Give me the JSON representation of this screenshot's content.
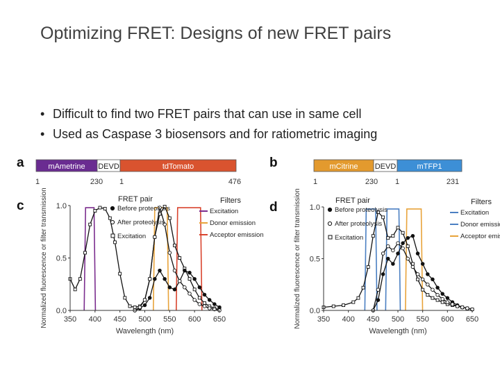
{
  "slide": {
    "title": "Optimizing FRET: Designs of new FRET pairs",
    "bullets": [
      "Difficult to find two FRET pairs that can use in same cell",
      "Used as Caspase 3 biosensors and for ratiometric imaging"
    ]
  },
  "panels": {
    "a": {
      "letter": "a",
      "segments": [
        {
          "label": "mAmetrine",
          "color": "#6a2c91"
        },
        {
          "label": "DEVD",
          "color": "#ffffff"
        },
        {
          "label": "tdTomato",
          "color": "#d9532f"
        }
      ],
      "numbers": [
        "1",
        "230",
        "1",
        "476"
      ]
    },
    "b": {
      "letter": "b",
      "segments": [
        {
          "label": "mCitrine",
          "color": "#e39a2e"
        },
        {
          "label": "DEVD",
          "color": "#ffffff"
        },
        {
          "label": "mTFP1",
          "color": "#3d8fd6"
        }
      ],
      "numbers": [
        "1",
        "230",
        "1",
        "231"
      ]
    }
  },
  "chart_data": [
    {
      "panel": "c",
      "type": "line",
      "xlabel": "Wavelength (nm)",
      "ylabel": "Normalized fluorescence or filter transmission",
      "xlim": [
        350,
        650
      ],
      "ylim": [
        0,
        1
      ],
      "xticks": [
        "350",
        "400",
        "450",
        "500",
        "550",
        "600",
        "650"
      ],
      "yticks": [
        "0.0",
        "0.5",
        "1.0"
      ],
      "legend_fret_title": "FRET pair",
      "legend_fret": [
        {
          "marker": "filled-circle",
          "label": "Before proteolysis"
        },
        {
          "marker": "open-circle",
          "label": "After proteolysis"
        },
        {
          "marker": "square",
          "label": "Excitation"
        }
      ],
      "legend_filters_title": "Filters",
      "legend_filters": [
        {
          "label": "Excitation",
          "color": "#7b2d8e"
        },
        {
          "label": "Donor emission",
          "color": "#e8a33a"
        },
        {
          "label": "Acceptor emission",
          "color": "#d9442e"
        }
      ],
      "series": [
        {
          "name": "Excitation",
          "x": [
            350,
            360,
            370,
            380,
            390,
            400,
            410,
            420,
            430,
            440,
            450,
            460,
            470,
            480,
            490,
            500,
            510,
            520,
            530,
            540,
            550,
            560,
            570,
            580,
            590,
            600,
            610,
            620,
            630,
            640,
            650
          ],
          "y": [
            0.3,
            0.2,
            0.3,
            0.55,
            0.82,
            0.95,
            0.98,
            0.97,
            0.88,
            0.65,
            0.35,
            0.12,
            0.04,
            0.03,
            0.04,
            0.1,
            0.3,
            0.7,
            0.92,
            0.99,
            0.88,
            0.62,
            0.5,
            0.4,
            0.3,
            0.2,
            0.12,
            0.07,
            0.04,
            0.02,
            0.01
          ]
        },
        {
          "name": "Before proteolysis",
          "x": [
            480,
            490,
            500,
            510,
            520,
            530,
            540,
            550,
            560,
            570,
            580,
            590,
            600,
            610,
            620,
            630,
            640,
            650
          ],
          "y": [
            0.0,
            0.02,
            0.05,
            0.12,
            0.3,
            0.38,
            0.3,
            0.22,
            0.2,
            0.28,
            0.38,
            0.36,
            0.3,
            0.22,
            0.15,
            0.1,
            0.06,
            0.03
          ]
        },
        {
          "name": "After proteolysis",
          "x": [
            480,
            490,
            500,
            510,
            520,
            530,
            540,
            550,
            560,
            570,
            580,
            590,
            600,
            610,
            620,
            630,
            640,
            650
          ],
          "y": [
            0.0,
            0.03,
            0.1,
            0.3,
            0.7,
            0.98,
            0.82,
            0.55,
            0.38,
            0.28,
            0.22,
            0.16,
            0.1,
            0.06,
            0.04,
            0.02,
            0.01,
            0.0
          ]
        }
      ],
      "filter_bands": [
        {
          "name": "Excitation",
          "range": [
            381,
            398
          ]
        },
        {
          "name": "Donor emission",
          "range": [
            520,
            545
          ]
        },
        {
          "name": "Acceptor emission",
          "range": [
            566,
            612
          ]
        }
      ]
    },
    {
      "panel": "d",
      "type": "line",
      "xlabel": "Wavelength (nm)",
      "ylabel": "Normalized fluorescence or filter transmission",
      "xlim": [
        350,
        650
      ],
      "ylim": [
        0,
        1
      ],
      "xticks": [
        "350",
        "400",
        "450",
        "500",
        "550",
        "600",
        "650"
      ],
      "yticks": [
        "0.0",
        "0.5",
        "1.0"
      ],
      "legend_fret_title": "FRET pair",
      "legend_fret": [
        {
          "marker": "filled-circle",
          "label": "Before proteolysis"
        },
        {
          "marker": "open-circle",
          "label": "After proteolysis"
        },
        {
          "marker": "square",
          "label": "Excitation"
        }
      ],
      "legend_filters_title": "Filters",
      "legend_filters": [
        {
          "label": "Excitation",
          "color": "#4a7fc2"
        },
        {
          "label": "Donor emission",
          "color": "#4a7fc2"
        },
        {
          "label": "Acceptor emission",
          "color": "#e8a33a"
        }
      ],
      "series": [
        {
          "name": "Excitation",
          "x": [
            350,
            370,
            390,
            410,
            420,
            430,
            440,
            450,
            460,
            470,
            480,
            490,
            500,
            510,
            520,
            530,
            540,
            550,
            560,
            570,
            580,
            590,
            600,
            610,
            620,
            630,
            640,
            650
          ],
          "y": [
            0.03,
            0.04,
            0.05,
            0.08,
            0.12,
            0.22,
            0.42,
            0.72,
            0.95,
            0.9,
            0.7,
            0.72,
            0.8,
            0.75,
            0.62,
            0.45,
            0.3,
            0.2,
            0.15,
            0.12,
            0.1,
            0.08,
            0.06,
            0.05,
            0.04,
            0.03,
            0.02,
            0.01
          ]
        },
        {
          "name": "Before proteolysis",
          "x": [
            450,
            460,
            470,
            480,
            490,
            500,
            510,
            520,
            530,
            540,
            550,
            560,
            570,
            580,
            590,
            600,
            610,
            620,
            630,
            640,
            650
          ],
          "y": [
            0.0,
            0.1,
            0.35,
            0.5,
            0.45,
            0.55,
            0.65,
            0.7,
            0.72,
            0.55,
            0.45,
            0.35,
            0.3,
            0.22,
            0.16,
            0.12,
            0.08,
            0.05,
            0.03,
            0.02,
            0.01
          ]
        },
        {
          "name": "After proteolysis",
          "x": [
            450,
            460,
            470,
            480,
            490,
            500,
            510,
            520,
            530,
            540,
            550,
            560,
            570,
            580,
            590,
            600,
            610,
            620,
            630,
            640,
            650
          ],
          "y": [
            0.0,
            0.2,
            0.55,
            0.62,
            0.58,
            0.65,
            0.6,
            0.5,
            0.42,
            0.35,
            0.3,
            0.25,
            0.2,
            0.15,
            0.11,
            0.08,
            0.06,
            0.04,
            0.03,
            0.02,
            0.01
          ]
        }
      ],
      "filter_bands": [
        {
          "name": "Excitation",
          "range": [
            436,
            455
          ]
        },
        {
          "name": "Donor emission",
          "range": [
            478,
            502
          ]
        },
        {
          "name": "Acceptor emission",
          "range": [
            518,
            547
          ]
        }
      ]
    }
  ]
}
